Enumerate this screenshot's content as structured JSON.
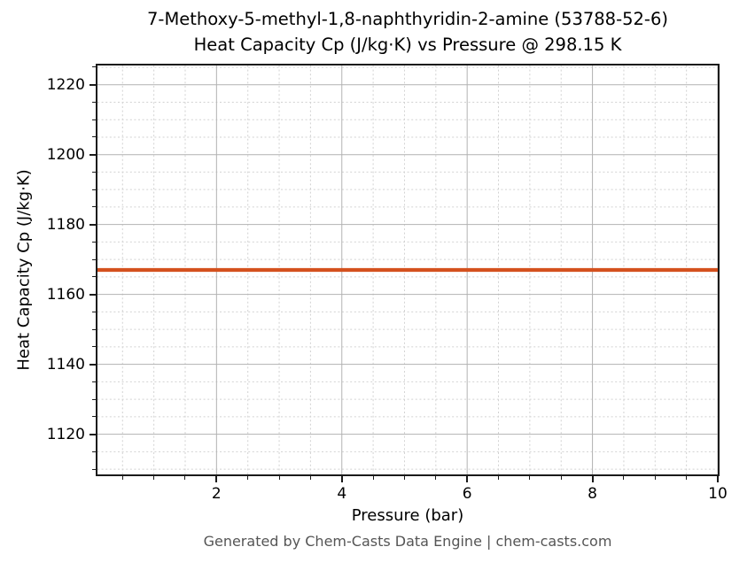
{
  "title_line1": "7-Methoxy-5-methyl-1,8-naphthyridin-2-amine (53788-52-6)",
  "title_line2": "Heat Capacity Cp (J/kg·K) vs Pressure @ 298.15 K",
  "footer": "Generated by Chem-Casts Data Engine | chem-casts.com",
  "colors": {
    "line": "#d4511e",
    "major_grid": "#b2b2b2",
    "minor_grid": "#d2d2d2",
    "spine": "#1a1a1a",
    "footer_text": "#555555"
  },
  "chart_data": {
    "type": "line",
    "title": "7-Methoxy-5-methyl-1,8-naphthyridin-2-amine (53788-52-6) Heat Capacity Cp (J/kg·K) vs Pressure @ 298.15 K",
    "xlabel": "Pressure (bar)",
    "ylabel": "Heat Capacity Cp (J/kg·K)",
    "x": [
      0.1,
      1,
      2,
      3,
      4,
      5,
      6,
      7,
      8,
      9,
      10
    ],
    "series": [
      {
        "name": "Heat Capacity Cp",
        "values": [
          1167,
          1167,
          1167,
          1167,
          1167,
          1167,
          1167,
          1167,
          1167,
          1167,
          1167
        ]
      }
    ],
    "xlim": [
      0.1,
      10
    ],
    "ylim": [
      1108.5,
      1225.5
    ],
    "x_major_ticks": [
      2,
      4,
      6,
      8,
      10
    ],
    "x_minor_step": 0.5,
    "y_major_ticks": [
      1120,
      1140,
      1160,
      1180,
      1200,
      1220
    ],
    "y_minor_step": 5,
    "grid": true,
    "legend_position": "none"
  }
}
